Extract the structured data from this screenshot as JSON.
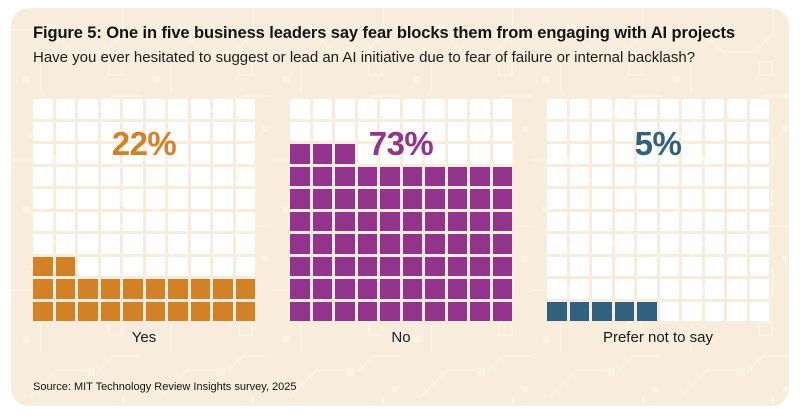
{
  "figure": {
    "title": "Figure 5: One in five business leaders say fear blocks them from engaging with AI projects",
    "subtitle": "Have you ever hesitated to suggest or lead an AI initiative due to fear of failure or internal backlash?",
    "source": "Source: MIT Technology Review Insights survey, 2025"
  },
  "colors": {
    "page_bg": "#ffffff",
    "card_bg": "#f8ecdc",
    "pattern_line": "#fdf3e5",
    "cell_empty": "#ffffff",
    "title_text": "#141414",
    "yes_orange": "#d28127",
    "no_purple": "#93348c",
    "prefer_teal": "#31617e"
  },
  "chart_data": {
    "type": "waffle",
    "title": "Figure 5: One in five business leaders say fear blocks them from engaging with AI projects",
    "subtitle": "Have you ever hesitated to suggest or lead an AI initiative due to fear of failure or internal backlash?",
    "grid": {
      "rows": 10,
      "cols": 10,
      "unit_percent": 1
    },
    "categories": [
      "Yes",
      "No",
      "Prefer not to say"
    ],
    "values": [
      22,
      73,
      5
    ],
    "series": [
      {
        "label": "Yes",
        "value": 22,
        "value_label": "22%",
        "color": "#d28127"
      },
      {
        "label": "No",
        "value": 73,
        "value_label": "73%",
        "color": "#93348c"
      },
      {
        "label": "Prefer not to say",
        "value": 5,
        "value_label": "5%",
        "color": "#31617e"
      }
    ],
    "legend_position": "none",
    "grid_lines": "off",
    "source": "Source: MIT Technology Review Insights survey, 2025"
  }
}
